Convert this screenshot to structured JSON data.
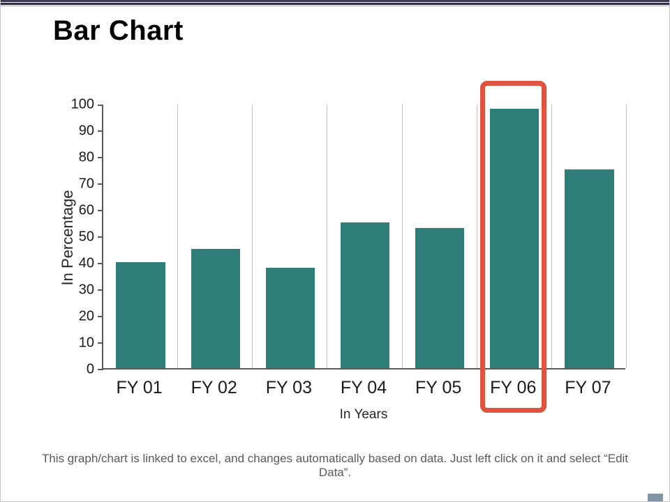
{
  "slide": {
    "title": "Bar Chart",
    "footnote": "This graph/chart is linked to excel, and changes automatically based on data. Just left click on it and select “Edit Data”."
  },
  "chart_data": {
    "type": "bar",
    "categories": [
      "FY 01",
      "FY 02",
      "FY 03",
      "FY 04",
      "FY 05",
      "FY 06",
      "FY 07"
    ],
    "values": [
      40,
      45,
      38,
      55,
      53,
      98,
      75
    ],
    "title": "",
    "xlabel": "In Years",
    "ylabel": "In Percentage",
    "ylim": [
      0,
      100
    ],
    "ytick_step": 10,
    "yticks": [
      0,
      10,
      20,
      30,
      40,
      50,
      60,
      70,
      80,
      90,
      100
    ],
    "bar_color": "#2e7d78",
    "highlight_category": "FY 06",
    "highlight_color": "#e0533f",
    "grid": "vertical-separators",
    "legend": "none"
  }
}
